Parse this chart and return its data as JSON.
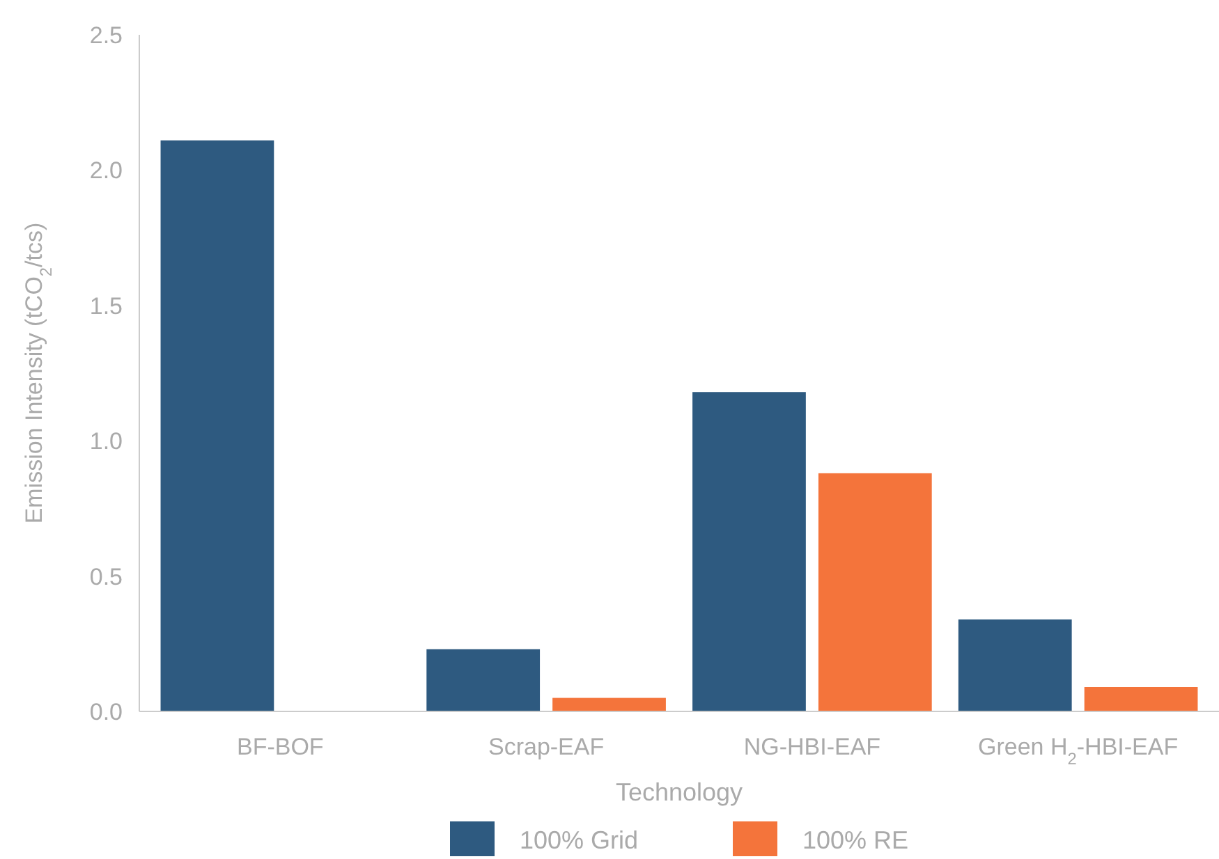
{
  "chart_data": {
    "type": "bar",
    "xlabel": "Technology",
    "ylabel": "Emission Intensity (tCO$_{2}$/tcs)",
    "categories": [
      "BF-BOF",
      "Scrap-EAF",
      "NG-HBI-EAF",
      "Green H$_{2}$-HBI-EAF"
    ],
    "series": [
      {
        "name": "100% Grid",
        "color": "#2e5a80",
        "values": [
          2.11,
          0.23,
          1.18,
          0.34
        ]
      },
      {
        "name": "100% RE",
        "color": "#f4743b",
        "values": [
          null,
          0.05,
          0.88,
          0.09
        ]
      }
    ],
    "ylim": [
      0,
      2.5
    ],
    "yticks": [
      {
        "value": 0,
        "label": "0.0"
      },
      {
        "value": 0.5,
        "label": "0.5"
      },
      {
        "value": 1,
        "label": "1.0"
      },
      {
        "value": 1.5,
        "label": "1.5"
      },
      {
        "value": 2,
        "label": "2.0"
      },
      {
        "value": 2.5,
        "label": "2.5"
      }
    ],
    "grid": false,
    "legend": "bottom"
  }
}
